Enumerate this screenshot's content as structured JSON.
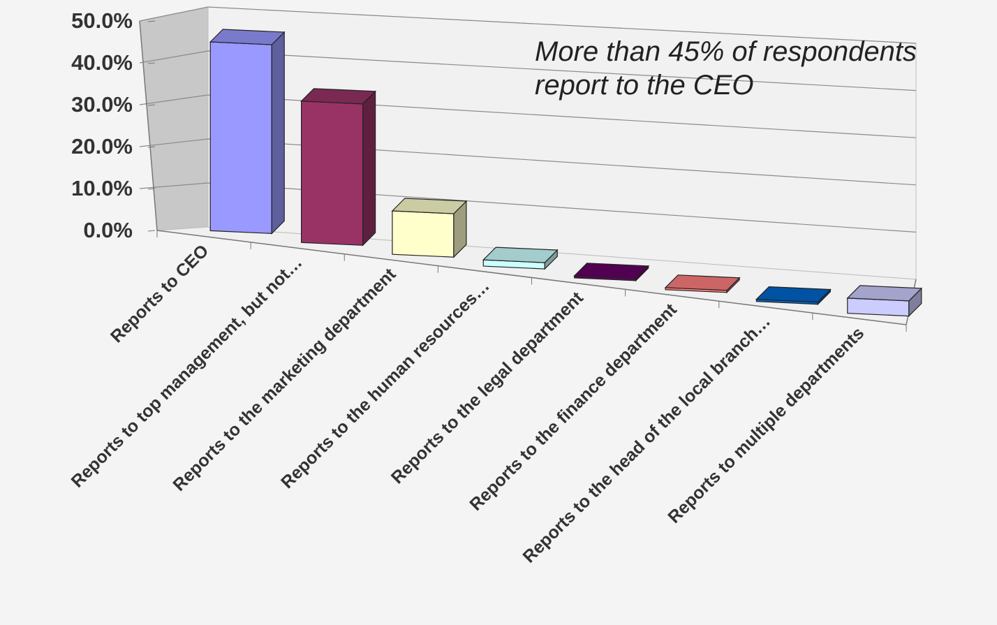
{
  "chart_data": {
    "type": "bar",
    "style": "3d-column",
    "categories": [
      "Reports to CEO",
      "Reports to top management, but not…",
      "Reports to the marketing department",
      "Reports to the human resources…",
      "Reports to the legal department",
      "Reports to the finance department",
      "Reports to the head of the local branch…",
      "Reports to multiple departments"
    ],
    "values": [
      46.5,
      34.5,
      10.5,
      1.5,
      0.5,
      0.5,
      0.5,
      3.5
    ],
    "colors": [
      "#9999ff",
      "#993366",
      "#ffffcc",
      "#ccffff",
      "#660066",
      "#ff8080",
      "#0066cc",
      "#ccccff"
    ],
    "ylim": [
      0,
      50
    ],
    "yticks": [
      "0.0%",
      "10.0%",
      "20.0%",
      "30.0%",
      "40.0%",
      "50.0%"
    ],
    "grid": true,
    "annotation": {
      "line1": "More than 45% of respondents",
      "line2": "report to the CEO"
    }
  }
}
